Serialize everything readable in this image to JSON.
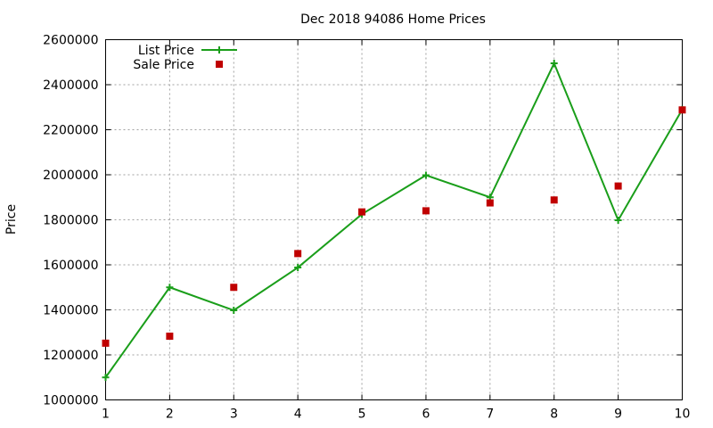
{
  "chart_data": {
    "type": "line",
    "title": "Dec 2018 94086 Home Prices",
    "xlabel": "",
    "ylabel": "Price",
    "xlim": [
      1,
      10
    ],
    "ylim": [
      1000000,
      2600000
    ],
    "x_ticks": [
      1,
      2,
      3,
      4,
      5,
      6,
      7,
      8,
      9,
      10
    ],
    "y_ticks": [
      1000000,
      1200000,
      1400000,
      1600000,
      1800000,
      2000000,
      2200000,
      2400000,
      2600000
    ],
    "grid": true,
    "legend_position": "top-left",
    "series": [
      {
        "name": "List Price",
        "style": "line-points",
        "color": "#1a9e1a",
        "x": [
          1,
          2,
          3,
          4,
          5,
          6,
          7,
          8,
          9,
          10
        ],
        "y": [
          1100000,
          1500000,
          1398000,
          1588000,
          1825000,
          1998000,
          1900000,
          2495000,
          1798000,
          2290000
        ]
      },
      {
        "name": "Sale Price",
        "style": "points",
        "color": "#c00000",
        "x": [
          1,
          2,
          3,
          4,
          5,
          6,
          7,
          8,
          9,
          10
        ],
        "y": [
          1252000,
          1283000,
          1500000,
          1650000,
          1835000,
          1840000,
          1875000,
          1888000,
          1950000,
          2288000
        ]
      }
    ]
  }
}
